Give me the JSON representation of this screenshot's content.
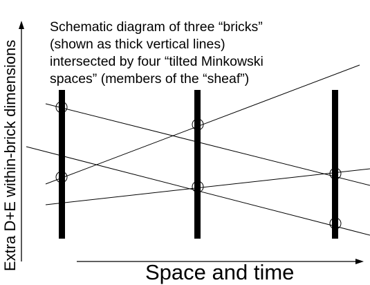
{
  "caption": {
    "lines": [
      "Schematic diagram of three “bricks”",
      "(shown as thick vertical lines)",
      "intersected by four “tilted Minkowski",
      "spaces” (members of the “sheaf”)"
    ]
  },
  "x_axis": {
    "label": "Space and time"
  },
  "y_axis": {
    "label": "Extra D+E within-brick dimensions"
  },
  "colors": {
    "ink": "#000000",
    "background": "#ffffff"
  }
}
